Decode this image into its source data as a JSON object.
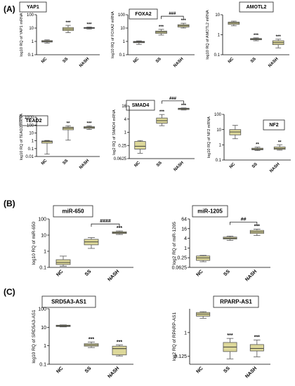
{
  "section_labels": {
    "a": "(A)",
    "b": "(B)",
    "c": "(C)"
  },
  "colors": {
    "box_fill": "#ddd89a",
    "box_stroke": "#555555",
    "title_box_stroke": "#222222"
  },
  "chart_data": [
    {
      "id": "yap1",
      "type": "box",
      "title": "YAP1",
      "ylabel": "log10 RQ of YAP1 mRNA",
      "scale": "log",
      "ylim": [
        0.1,
        100
      ],
      "ticks": [
        "0.1",
        "1",
        "10",
        "100"
      ],
      "tick_values": [
        0.1,
        1,
        10,
        100
      ],
      "categories": [
        "NC",
        "SS",
        "NASH"
      ],
      "boxes": [
        {
          "min": 0.75,
          "q1": 0.9,
          "median": 1.0,
          "q3": 1.15,
          "max": 1.3
        },
        {
          "min": 4.5,
          "q1": 6.5,
          "median": 8.5,
          "q3": 11,
          "max": 16
        },
        {
          "min": 8.5,
          "q1": 9.5,
          "median": 10.2,
          "q3": 11,
          "max": 12
        }
      ],
      "annotations": [
        "",
        "***",
        "***"
      ]
    },
    {
      "id": "foxa2",
      "type": "box",
      "title": "FOXA2",
      "ylabel": "log10 RQ of FOXA2 mRNA",
      "scale": "log",
      "ylim": [
        0.1,
        100
      ],
      "ticks": [
        "0.1",
        "1",
        "10",
        "100"
      ],
      "tick_values": [
        0.1,
        1,
        10,
        100
      ],
      "categories": [
        "NC",
        "SS",
        "NASH"
      ],
      "boxes": [
        {
          "min": 0.6,
          "q1": 0.8,
          "median": 0.9,
          "q3": 1.0,
          "max": 1.1
        },
        {
          "min": 3,
          "q1": 4,
          "median": 5,
          "q3": 6,
          "max": 8
        },
        {
          "min": 10,
          "q1": 12,
          "median": 15,
          "q3": 18,
          "max": 23
        }
      ],
      "annotations": [
        "",
        "***",
        "***"
      ],
      "bracket": {
        "from": 1,
        "to": 2,
        "label": "###"
      }
    },
    {
      "id": "amotl2",
      "type": "box",
      "title": "AMOTL2",
      "ylabel": "log10 RQ of AMOTL2 mRNA",
      "scale": "log",
      "ylim": [
        0.1,
        10
      ],
      "ticks": [
        "0.1",
        "1",
        "10"
      ],
      "tick_values": [
        0.1,
        1,
        10
      ],
      "categories": [
        "NC",
        "SS",
        "NASH"
      ],
      "boxes": [
        {
          "min": 2.8,
          "q1": 3.3,
          "median": 3.8,
          "q3": 4.3,
          "max": 4.8
        },
        {
          "min": 0.5,
          "q1": 0.56,
          "median": 0.6,
          "q3": 0.65,
          "max": 0.7
        },
        {
          "min": 0.22,
          "q1": 0.32,
          "median": 0.4,
          "q3": 0.5,
          "max": 0.6
        }
      ],
      "annotations": [
        "",
        "***",
        "***"
      ]
    },
    {
      "id": "tead2",
      "type": "box",
      "title": "TEAD2",
      "ylabel": "log10 RQ of TEAD2 mRNA",
      "scale": "log",
      "ylim": [
        0.01,
        1000
      ],
      "ticks": [
        "0.01",
        "0.1",
        "1",
        "10",
        "100",
        "1000"
      ],
      "tick_values": [
        0.01,
        0.1,
        1,
        10,
        100,
        1000
      ],
      "categories": [
        "NC",
        "SS",
        "NASH"
      ],
      "boxes": [
        {
          "min": 0.02,
          "q1": 0.5,
          "median": 0.8,
          "q3": 0.95,
          "max": 1.1
        },
        {
          "min": 1.2,
          "q1": 25,
          "median": 40,
          "q3": 55,
          "max": 80
        },
        {
          "min": 28,
          "q1": 38,
          "median": 48,
          "q3": 62,
          "max": 80
        }
      ],
      "annotations": [
        "",
        "**",
        "***"
      ]
    },
    {
      "id": "smad4",
      "type": "box",
      "title": "SMAD4",
      "ylabel": "log2 RQ of SMAD4 mRNA",
      "scale": "log",
      "ylim": [
        0.0625,
        16
      ],
      "ticks": [
        "0.0625",
        "0.25",
        "1",
        "4",
        "16"
      ],
      "tick_values": [
        0.0625,
        0.25,
        1,
        4,
        16
      ],
      "categories": [
        "NC",
        "SS",
        "NASH"
      ],
      "boxes": [
        {
          "min": 0.11,
          "q1": 0.17,
          "median": 0.23,
          "q3": 0.38,
          "max": 0.42
        },
        {
          "min": 2.0,
          "q1": 2.6,
          "median": 3.4,
          "q3": 4.5,
          "max": 6.5
        },
        {
          "min": 10.5,
          "q1": 11,
          "median": 12,
          "q3": 12.6,
          "max": 13
        }
      ],
      "annotations": [
        "",
        "***",
        "***"
      ],
      "bracket": {
        "from": 1,
        "to": 2,
        "label": "###"
      }
    },
    {
      "id": "nf2",
      "type": "box",
      "title": "NF2",
      "ylabel": "log10 RQ of NF2 mRNA",
      "scale": "log",
      "ylim": [
        0.1,
        100
      ],
      "ticks": [
        "0.1",
        "1",
        "10",
        "100"
      ],
      "tick_values": [
        0.1,
        1,
        10,
        100
      ],
      "categories": [
        "NC",
        "SS",
        "NASH"
      ],
      "boxes": [
        {
          "min": 2.5,
          "q1": 4.5,
          "median": 7,
          "q3": 10,
          "max": 19
        },
        {
          "min": 0.42,
          "q1": 0.47,
          "median": 0.53,
          "q3": 0.6,
          "max": 0.7
        },
        {
          "min": 0.45,
          "q1": 0.5,
          "median": 0.58,
          "q3": 0.72,
          "max": 1.0
        }
      ],
      "annotations": [
        "",
        "**",
        "**"
      ]
    },
    {
      "id": "mir650",
      "type": "box",
      "title": "miR-650",
      "ylabel": "log10 RQ of miR-650",
      "scale": "log",
      "ylim": [
        0.1,
        100
      ],
      "ticks": [
        "0.1",
        "1",
        "10",
        "100"
      ],
      "tick_values": [
        0.1,
        1,
        10,
        100
      ],
      "categories": [
        "NC",
        "SS",
        "NASH"
      ],
      "boxes": [
        {
          "min": 0.12,
          "q1": 0.15,
          "median": 0.2,
          "q3": 0.3,
          "max": 0.5
        },
        {
          "min": 1.5,
          "q1": 2.5,
          "median": 3.8,
          "q3": 5.5,
          "max": 7
        },
        {
          "min": 11,
          "q1": 12.5,
          "median": 14,
          "q3": 16,
          "max": 18
        }
      ],
      "annotations": [
        "",
        "",
        "***"
      ],
      "bracket": {
        "from": 1,
        "to": 2,
        "label": "####"
      }
    },
    {
      "id": "mir1205",
      "type": "box",
      "title": "miR-1205",
      "ylabel": "log2 RQ of miR-1205",
      "scale": "log",
      "ylim": [
        0.0625,
        64
      ],
      "ticks": [
        "0.0625",
        "0.25",
        "1",
        "4",
        "16",
        "64"
      ],
      "tick_values": [
        0.0625,
        0.25,
        1,
        4,
        16,
        64
      ],
      "categories": [
        "NC",
        "SS",
        "NASH"
      ],
      "boxes": [
        {
          "min": 0.14,
          "q1": 0.17,
          "median": 0.24,
          "q3": 0.32,
          "max": 0.35
        },
        {
          "min": 3,
          "q1": 3.6,
          "median": 4.1,
          "q3": 4.8,
          "max": 5.5
        },
        {
          "min": 6,
          "q1": 8,
          "median": 10,
          "q3": 12.5,
          "max": 15
        }
      ],
      "annotations": [
        "",
        "",
        "***"
      ],
      "bracket": {
        "from": 1,
        "to": 2,
        "label": "##"
      }
    },
    {
      "id": "srd5a3",
      "type": "box",
      "title": "SRD5A3-AS1",
      "ylabel": "log10 RQ of SRD5A3-AS1",
      "scale": "log",
      "ylim": [
        0.1,
        100
      ],
      "ticks": [
        "0.1",
        "1",
        "10",
        "100"
      ],
      "tick_values": [
        0.1,
        1,
        10,
        100
      ],
      "categories": [
        "NC",
        "SS",
        "NASH"
      ],
      "boxes": [
        {
          "min": 10.5,
          "q1": 11,
          "median": 12,
          "q3": 13,
          "max": 13.5
        },
        {
          "min": 0.8,
          "q1": 0.95,
          "median": 1.1,
          "q3": 1.3,
          "max": 1.6
        },
        {
          "min": 0.28,
          "q1": 0.32,
          "median": 0.7,
          "q3": 0.95,
          "max": 1.1
        }
      ],
      "annotations": [
        "",
        "***",
        "***"
      ]
    },
    {
      "id": "rparp",
      "type": "box",
      "title": "RPARP-AS1",
      "ylabel": "log2 RQ of RPARP-AS1",
      "scale": "log",
      "ylim": [
        0.0625,
        8
      ],
      "ticks": [
        "0.125",
        "1"
      ],
      "tick_values": [
        0.125,
        1
      ],
      "categories": [
        "NC",
        "SS",
        "NASH"
      ],
      "boxes": [
        {
          "min": 3.5,
          "q1": 4.2,
          "median": 5.0,
          "q3": 5.8,
          "max": 6.2
        },
        {
          "min": 0.1,
          "q1": 0.19,
          "median": 0.28,
          "q3": 0.42,
          "max": 0.6
        },
        {
          "min": 0.12,
          "q1": 0.2,
          "median": 0.25,
          "q3": 0.35,
          "max": 0.52
        }
      ],
      "annotations": [
        "",
        "***",
        "***"
      ]
    }
  ]
}
